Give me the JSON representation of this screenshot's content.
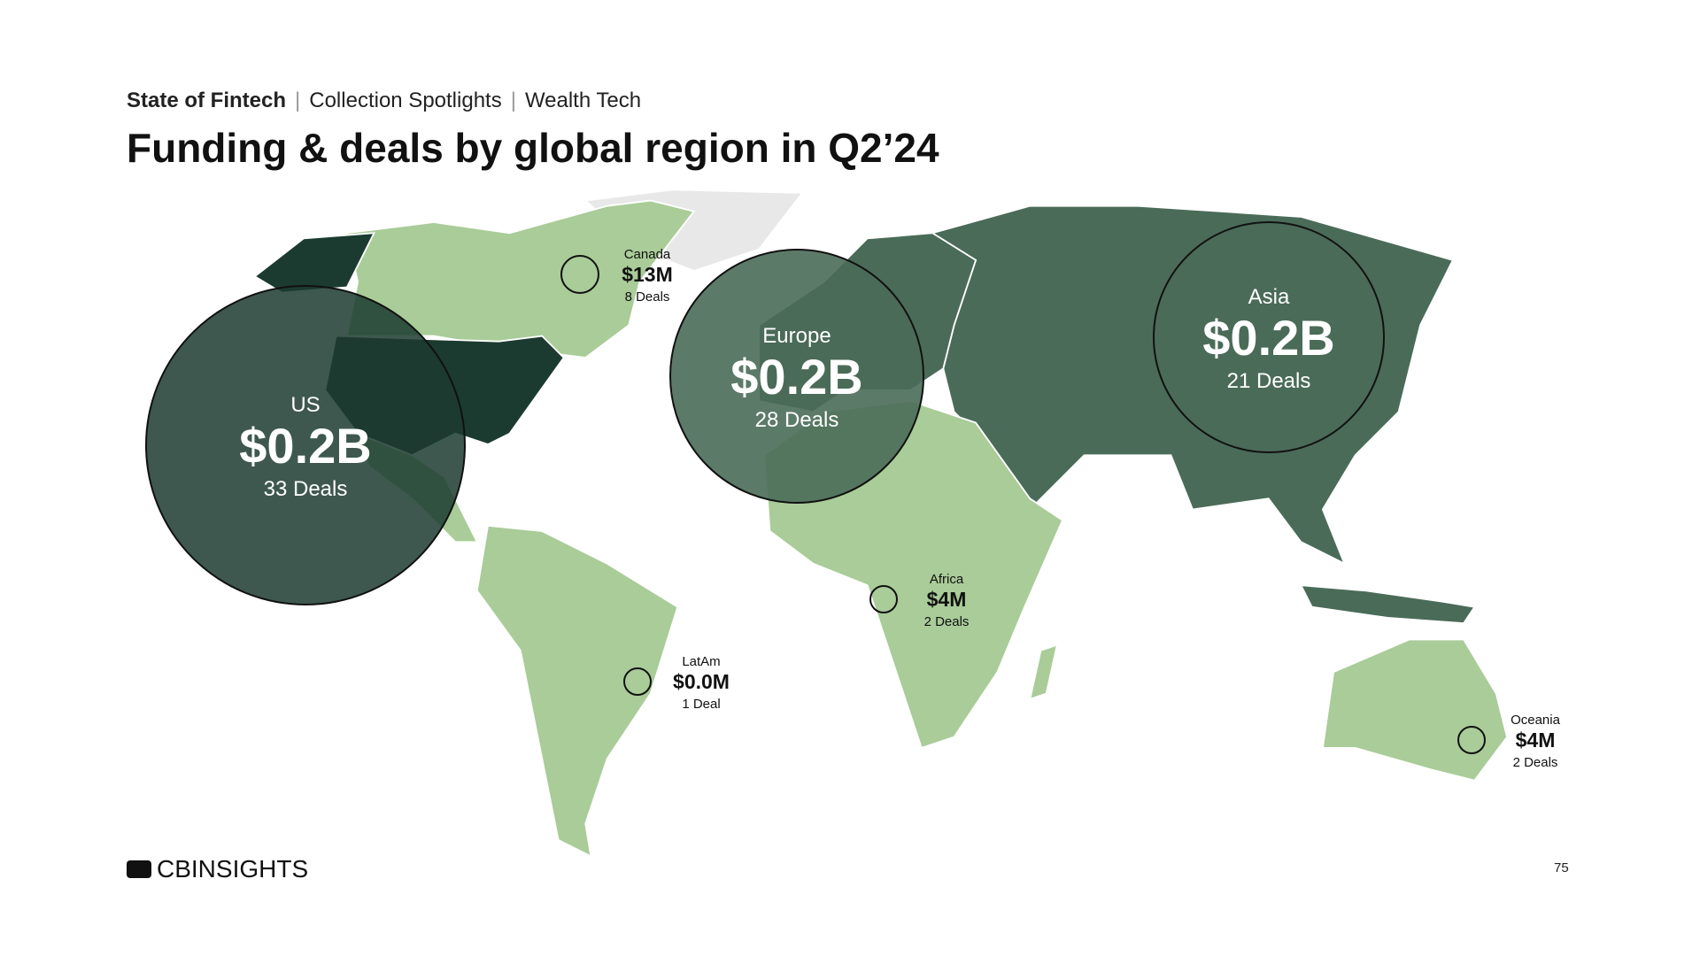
{
  "header": {
    "crumbs": [
      "State of Fintech",
      "Collection Spotlights",
      "Wealth Tech"
    ],
    "title": "Funding & deals by global region in Q2’24"
  },
  "regions": [
    {
      "name": "US",
      "funding": "$0.2B",
      "deals": "33 Deals"
    },
    {
      "name": "Europe",
      "funding": "$0.2B",
      "deals": "28 Deals"
    },
    {
      "name": "Asia",
      "funding": "$0.2B",
      "deals": "21 Deals"
    },
    {
      "name": "Canada",
      "funding": "$13M",
      "deals": "8 Deals"
    },
    {
      "name": "Africa",
      "funding": "$4M",
      "deals": "2 Deals"
    },
    {
      "name": "LatAm",
      "funding": "$0.0M",
      "deals": "1 Deal"
    },
    {
      "name": "Oceania",
      "funding": "$4M",
      "deals": "2 Deals"
    }
  ],
  "footer": {
    "logo": "CBINSIGHTS",
    "page": "75"
  }
}
